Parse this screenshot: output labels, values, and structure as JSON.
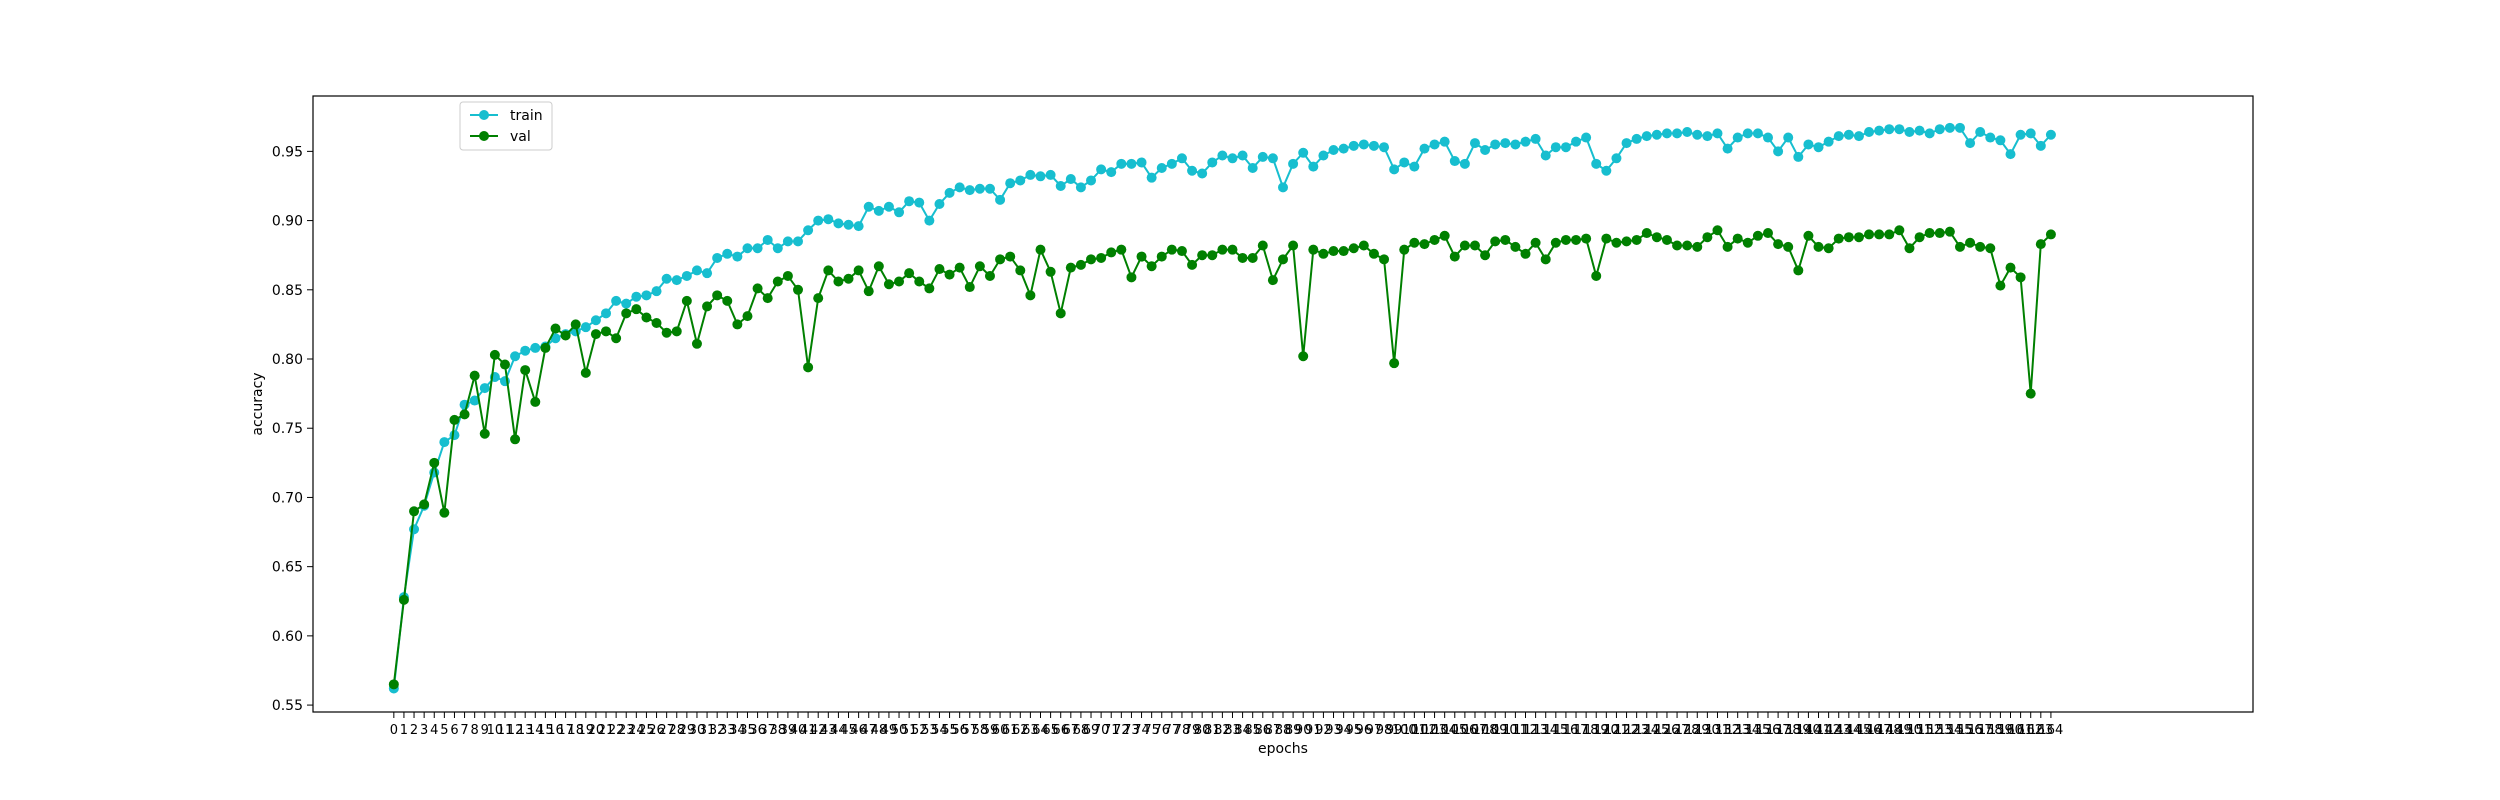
{
  "chart_data": {
    "type": "line",
    "xlabel": "epochs",
    "ylabel": "accuracy",
    "xlim": [
      -8,
      184
    ],
    "ylim": [
      0.545,
      0.99
    ],
    "yticks": [
      0.55,
      0.6,
      0.65,
      0.7,
      0.75,
      0.8,
      0.85,
      0.9,
      0.95
    ],
    "x": [
      0,
      1,
      2,
      3,
      4,
      5,
      6,
      7,
      8,
      9,
      10,
      11,
      12,
      13,
      14,
      15,
      16,
      17,
      18,
      19,
      20,
      21,
      22,
      23,
      24,
      25,
      26,
      27,
      28,
      29,
      30,
      31,
      32,
      33,
      34,
      35,
      36,
      37,
      38,
      39,
      40,
      41,
      42,
      43,
      44,
      45,
      46,
      47,
      48,
      49,
      50,
      51,
      52,
      53,
      54,
      55,
      56,
      57,
      58,
      59,
      60,
      61,
      62,
      63,
      64,
      65,
      66,
      67,
      68,
      69,
      70,
      71,
      72,
      73,
      74,
      75,
      76,
      77,
      78,
      79,
      80,
      81,
      82,
      83,
      84,
      85,
      86,
      87,
      88,
      89,
      90,
      91,
      92,
      93,
      94,
      95,
      96,
      97,
      98,
      99,
      100,
      101,
      102,
      103,
      104,
      105,
      106,
      107,
      108,
      109,
      110,
      111,
      112,
      113,
      114,
      115,
      116,
      117,
      118,
      119,
      120,
      121,
      122,
      123,
      124,
      125,
      126,
      127,
      128,
      129,
      130,
      131,
      132,
      133,
      134,
      135,
      136,
      137,
      138,
      139,
      140,
      141,
      142,
      143,
      144,
      145,
      146,
      147,
      148,
      149,
      150,
      151,
      152,
      153,
      154,
      155,
      156,
      157,
      158,
      159,
      160,
      161,
      162,
      163,
      164
    ],
    "legend": {
      "position": "upper-left"
    },
    "grid": false,
    "series": [
      {
        "name": "train",
        "color": "#17becf",
        "values": [
          0.562,
          0.628,
          0.677,
          0.694,
          0.718,
          0.74,
          0.745,
          0.767,
          0.77,
          0.779,
          0.787,
          0.784,
          0.802,
          0.806,
          0.808,
          0.809,
          0.815,
          0.818,
          0.82,
          0.823,
          0.828,
          0.833,
          0.842,
          0.84,
          0.845,
          0.846,
          0.849,
          0.858,
          0.857,
          0.86,
          0.864,
          0.862,
          0.873,
          0.876,
          0.874,
          0.88,
          0.88,
          0.886,
          0.88,
          0.885,
          0.885,
          0.893,
          0.9,
          0.901,
          0.898,
          0.897,
          0.896,
          0.91,
          0.907,
          0.91,
          0.906,
          0.914,
          0.913,
          0.9,
          0.912,
          0.92,
          0.924,
          0.922,
          0.923,
          0.923,
          0.915,
          0.927,
          0.929,
          0.933,
          0.932,
          0.933,
          0.925,
          0.93,
          0.924,
          0.929,
          0.937,
          0.935,
          0.941,
          0.941,
          0.942,
          0.931,
          0.938,
          0.941,
          0.945,
          0.936,
          0.934,
          0.942,
          0.947,
          0.945,
          0.947,
          0.938,
          0.946,
          0.945,
          0.924,
          0.941,
          0.949,
          0.939,
          0.947,
          0.951,
          0.952,
          0.954,
          0.955,
          0.954,
          0.953,
          0.937,
          0.942,
          0.939,
          0.952,
          0.955,
          0.957,
          0.943,
          0.941,
          0.956,
          0.951,
          0.955,
          0.956,
          0.955,
          0.957,
          0.959,
          0.947,
          0.953,
          0.953,
          0.957,
          0.96,
          0.941,
          0.936,
          0.945,
          0.956,
          0.959,
          0.961,
          0.962,
          0.963,
          0.963,
          0.964,
          0.962,
          0.961,
          0.963,
          0.952,
          0.96,
          0.963,
          0.963,
          0.96,
          0.95,
          0.96,
          0.946,
          0.955,
          0.953,
          0.957,
          0.961,
          0.962,
          0.961,
          0.964,
          0.965,
          0.966,
          0.966,
          0.964,
          0.965,
          0.963,
          0.966,
          0.967,
          0.967,
          0.956,
          0.964,
          0.96,
          0.958,
          0.948,
          0.962,
          0.963,
          0.954,
          0.962
        ]
      },
      {
        "name": "val",
        "color": "#008000",
        "values": [
          0.565,
          0.626,
          0.69,
          0.695,
          0.725,
          0.689,
          0.756,
          0.76,
          0.788,
          0.746,
          0.803,
          0.796,
          0.742,
          0.792,
          0.769,
          0.808,
          0.822,
          0.817,
          0.825,
          0.79,
          0.818,
          0.82,
          0.815,
          0.833,
          0.836,
          0.83,
          0.826,
          0.819,
          0.82,
          0.842,
          0.811,
          0.838,
          0.846,
          0.842,
          0.825,
          0.831,
          0.851,
          0.844,
          0.856,
          0.86,
          0.85,
          0.794,
          0.844,
          0.864,
          0.856,
          0.858,
          0.864,
          0.849,
          0.867,
          0.854,
          0.856,
          0.862,
          0.856,
          0.851,
          0.865,
          0.861,
          0.866,
          0.852,
          0.867,
          0.86,
          0.872,
          0.874,
          0.864,
          0.846,
          0.879,
          0.863,
          0.833,
          0.866,
          0.868,
          0.872,
          0.873,
          0.877,
          0.879,
          0.859,
          0.874,
          0.867,
          0.874,
          0.879,
          0.878,
          0.868,
          0.875,
          0.875,
          0.879,
          0.879,
          0.873,
          0.873,
          0.882,
          0.857,
          0.872,
          0.882,
          0.802,
          0.879,
          0.876,
          0.878,
          0.878,
          0.88,
          0.882,
          0.876,
          0.872,
          0.797,
          0.879,
          0.884,
          0.883,
          0.886,
          0.889,
          0.874,
          0.882,
          0.882,
          0.875,
          0.885,
          0.886,
          0.881,
          0.876,
          0.884,
          0.872,
          0.884,
          0.886,
          0.886,
          0.887,
          0.86,
          0.887,
          0.884,
          0.885,
          0.886,
          0.891,
          0.888,
          0.886,
          0.882,
          0.882,
          0.881,
          0.888,
          0.893,
          0.881,
          0.887,
          0.884,
          0.889,
          0.891,
          0.883,
          0.881,
          0.864,
          0.889,
          0.881,
          0.88,
          0.887,
          0.888,
          0.888,
          0.89,
          0.89,
          0.89,
          0.893,
          0.88,
          0.888,
          0.891,
          0.891,
          0.892,
          0.881,
          0.884,
          0.881,
          0.88,
          0.853,
          0.866,
          0.859,
          0.775,
          0.883,
          0.89
        ]
      }
    ]
  }
}
